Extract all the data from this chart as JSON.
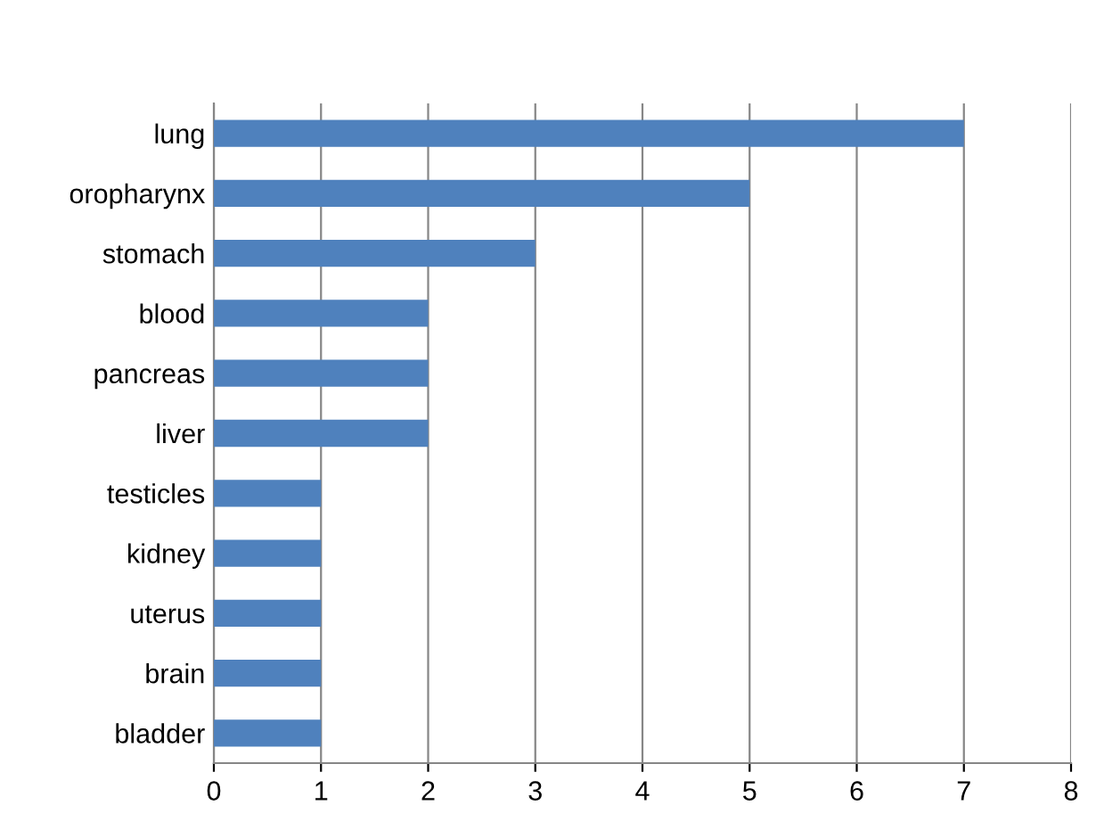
{
  "chart_data": {
    "type": "bar",
    "orientation": "horizontal",
    "categories": [
      "lung",
      "oropharynx",
      "stomach",
      "blood",
      "pancreas",
      "liver",
      "testicles",
      "kidney",
      "uterus",
      "brain",
      "bladder"
    ],
    "values": [
      7,
      5,
      3,
      2,
      2,
      2,
      1,
      1,
      1,
      1,
      1
    ],
    "color": "#4f81bd",
    "xlim": [
      0,
      8
    ],
    "xticks": [
      0,
      1,
      2,
      3,
      4,
      5,
      6,
      7,
      8
    ],
    "grid": "x"
  }
}
